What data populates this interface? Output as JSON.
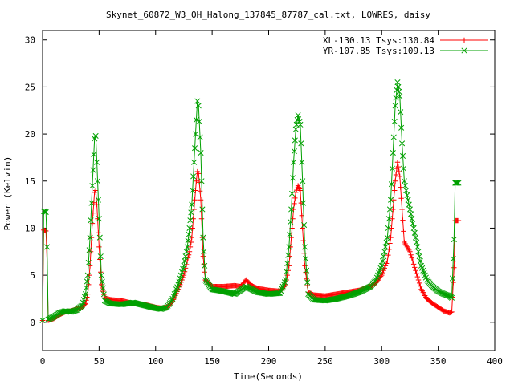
{
  "chart_data": {
    "type": "line",
    "title": "Skynet_60872_W3_OH_Halong_137845_87787_cal.txt, LOWRES, daisy",
    "xlabel": "Time(Seconds)",
    "ylabel": "Power (Kelvin)",
    "xlim": [
      0,
      400
    ],
    "ylim": [
      -3,
      31
    ],
    "xticks": [
      "0",
      "50",
      "100",
      "150",
      "200",
      "250",
      "300",
      "350",
      "400"
    ],
    "yticks": [
      "0",
      "5",
      "10",
      "15",
      "20",
      "25",
      "30"
    ],
    "grid": false,
    "legend_position": "top-right",
    "series": [
      {
        "name": "XL-130.13 Tsys:130.84",
        "color": "#ff0000",
        "marker": "plus",
        "points": [
          [
            0,
            0.2
          ],
          [
            1,
            9.8
          ],
          [
            3,
            9.7
          ],
          [
            4,
            6.5
          ],
          [
            5,
            0.2
          ],
          [
            10,
            0.4
          ],
          [
            15,
            0.8
          ],
          [
            20,
            1.1
          ],
          [
            25,
            1.2
          ],
          [
            30,
            1.4
          ],
          [
            35,
            1.6
          ],
          [
            38,
            2.0
          ],
          [
            40,
            3.0
          ],
          [
            42,
            6.0
          ],
          [
            44,
            10.5
          ],
          [
            46,
            13.8
          ],
          [
            47,
            14.0
          ],
          [
            48,
            12.5
          ],
          [
            50,
            8.0
          ],
          [
            52,
            4.0
          ],
          [
            55,
            2.6
          ],
          [
            60,
            2.4
          ],
          [
            70,
            2.3
          ],
          [
            80,
            2.0
          ],
          [
            90,
            1.9
          ],
          [
            100,
            1.6
          ],
          [
            105,
            1.5
          ],
          [
            110,
            1.6
          ],
          [
            115,
            2.2
          ],
          [
            120,
            3.5
          ],
          [
            125,
            5.0
          ],
          [
            128,
            6.5
          ],
          [
            130,
            7.5
          ],
          [
            132,
            9.0
          ],
          [
            134,
            12.0
          ],
          [
            136,
            15.0
          ],
          [
            137,
            16.0
          ],
          [
            138,
            15.8
          ],
          [
            140,
            13.0
          ],
          [
            142,
            7.0
          ],
          [
            144,
            4.5
          ],
          [
            150,
            3.8
          ],
          [
            160,
            3.8
          ],
          [
            170,
            3.9
          ],
          [
            175,
            3.8
          ],
          [
            180,
            4.5
          ],
          [
            185,
            3.9
          ],
          [
            190,
            3.6
          ],
          [
            200,
            3.4
          ],
          [
            210,
            3.3
          ],
          [
            215,
            4.0
          ],
          [
            218,
            6.0
          ],
          [
            220,
            9.0
          ],
          [
            222,
            12.0
          ],
          [
            224,
            13.8
          ],
          [
            226,
            14.5
          ],
          [
            228,
            14.0
          ],
          [
            230,
            10.0
          ],
          [
            232,
            6.0
          ],
          [
            235,
            3.2
          ],
          [
            240,
            2.9
          ],
          [
            250,
            2.8
          ],
          [
            260,
            3.0
          ],
          [
            270,
            3.2
          ],
          [
            280,
            3.4
          ],
          [
            290,
            3.8
          ],
          [
            295,
            4.2
          ],
          [
            300,
            5.0
          ],
          [
            305,
            6.5
          ],
          [
            308,
            9.0
          ],
          [
            310,
            12.0
          ],
          [
            312,
            15.0
          ],
          [
            314,
            17.0
          ],
          [
            316,
            15.5
          ],
          [
            318,
            12.0
          ],
          [
            320,
            8.5
          ],
          [
            325,
            7.5
          ],
          [
            330,
            5.5
          ],
          [
            335,
            3.5
          ],
          [
            340,
            2.5
          ],
          [
            345,
            2.0
          ],
          [
            350,
            1.6
          ],
          [
            355,
            1.2
          ],
          [
            360,
            1.0
          ],
          [
            362,
            1.1
          ],
          [
            364,
            5.8
          ],
          [
            365,
            10.8
          ],
          [
            367,
            10.8
          ],
          [
            368,
            10.8
          ]
        ]
      },
      {
        "name": "YR-107.85 Tsys:109.13",
        "color": "#00a000",
        "marker": "x",
        "points": [
          [
            0,
            0.2
          ],
          [
            1,
            11.8
          ],
          [
            3,
            11.7
          ],
          [
            4,
            8.0
          ],
          [
            5,
            0.3
          ],
          [
            10,
            0.6
          ],
          [
            15,
            1.0
          ],
          [
            20,
            1.2
          ],
          [
            25,
            1.1
          ],
          [
            30,
            1.3
          ],
          [
            35,
            1.8
          ],
          [
            38,
            3.0
          ],
          [
            40,
            5.0
          ],
          [
            42,
            9.0
          ],
          [
            44,
            14.5
          ],
          [
            46,
            19.5
          ],
          [
            47,
            19.8
          ],
          [
            48,
            17.0
          ],
          [
            50,
            11.0
          ],
          [
            52,
            5.0
          ],
          [
            55,
            2.3
          ],
          [
            60,
            2.0
          ],
          [
            70,
            1.9
          ],
          [
            80,
            2.1
          ],
          [
            90,
            1.8
          ],
          [
            100,
            1.5
          ],
          [
            105,
            1.4
          ],
          [
            110,
            1.6
          ],
          [
            115,
            2.5
          ],
          [
            120,
            4.0
          ],
          [
            125,
            6.0
          ],
          [
            128,
            8.0
          ],
          [
            130,
            10.0
          ],
          [
            132,
            12.5
          ],
          [
            134,
            17.0
          ],
          [
            136,
            21.5
          ],
          [
            137,
            23.5
          ],
          [
            138,
            23.0
          ],
          [
            140,
            18.0
          ],
          [
            142,
            9.0
          ],
          [
            144,
            4.5
          ],
          [
            150,
            3.5
          ],
          [
            160,
            3.3
          ],
          [
            170,
            3.0
          ],
          [
            180,
            3.8
          ],
          [
            190,
            3.2
          ],
          [
            200,
            3.0
          ],
          [
            210,
            3.1
          ],
          [
            215,
            4.5
          ],
          [
            218,
            8.0
          ],
          [
            220,
            12.0
          ],
          [
            222,
            17.0
          ],
          [
            224,
            20.5
          ],
          [
            226,
            22.0
          ],
          [
            228,
            21.0
          ],
          [
            230,
            15.0
          ],
          [
            232,
            8.0
          ],
          [
            235,
            3.0
          ],
          [
            240,
            2.4
          ],
          [
            250,
            2.3
          ],
          [
            260,
            2.5
          ],
          [
            270,
            2.8
          ],
          [
            280,
            3.2
          ],
          [
            290,
            3.8
          ],
          [
            295,
            4.5
          ],
          [
            300,
            6.0
          ],
          [
            305,
            9.0
          ],
          [
            308,
            13.0
          ],
          [
            310,
            18.0
          ],
          [
            312,
            23.0
          ],
          [
            314,
            25.5
          ],
          [
            316,
            24.0
          ],
          [
            318,
            19.0
          ],
          [
            320,
            15.0
          ],
          [
            325,
            12.0
          ],
          [
            330,
            9.0
          ],
          [
            335,
            6.0
          ],
          [
            340,
            4.5
          ],
          [
            345,
            3.8
          ],
          [
            350,
            3.3
          ],
          [
            355,
            3.0
          ],
          [
            360,
            2.8
          ],
          [
            362,
            2.6
          ],
          [
            364,
            8.8
          ],
          [
            365,
            14.8
          ],
          [
            367,
            14.8
          ],
          [
            368,
            14.8
          ]
        ]
      }
    ]
  }
}
